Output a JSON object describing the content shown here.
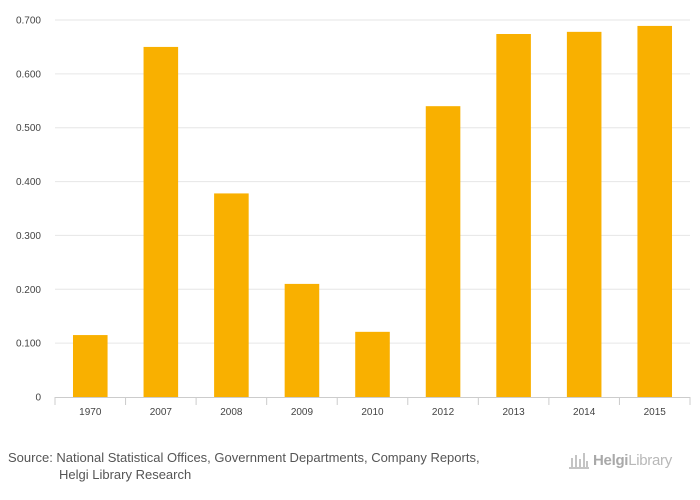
{
  "chart_data": {
    "type": "bar",
    "categories": [
      "1970",
      "2007",
      "2008",
      "2009",
      "2010",
      "2012",
      "2013",
      "2014",
      "2015"
    ],
    "values": [
      0.115,
      0.65,
      0.378,
      0.21,
      0.121,
      0.54,
      0.674,
      0.678,
      0.689
    ],
    "ylim": [
      0,
      0.7
    ],
    "yticks": [
      0,
      0.1,
      0.2,
      0.3,
      0.4,
      0.5,
      0.6,
      0.7
    ],
    "ytick_labels": [
      "0",
      "0.100",
      "0.200",
      "0.300",
      "0.400",
      "0.500",
      "0.600",
      "0.700"
    ],
    "bar_color": "#f9b000",
    "grid": true,
    "title": "",
    "xlabel": "",
    "ylabel": ""
  },
  "source": {
    "line1": "Source: National Statistical Offices, Government Departments, Company Reports,",
    "line2": "Helgi Library Research"
  },
  "logo": {
    "bold": "Helgi",
    "light": "Library"
  },
  "colors": {
    "grid": "#e6e6e6",
    "axis": "#cccccc",
    "text": "#555555"
  }
}
